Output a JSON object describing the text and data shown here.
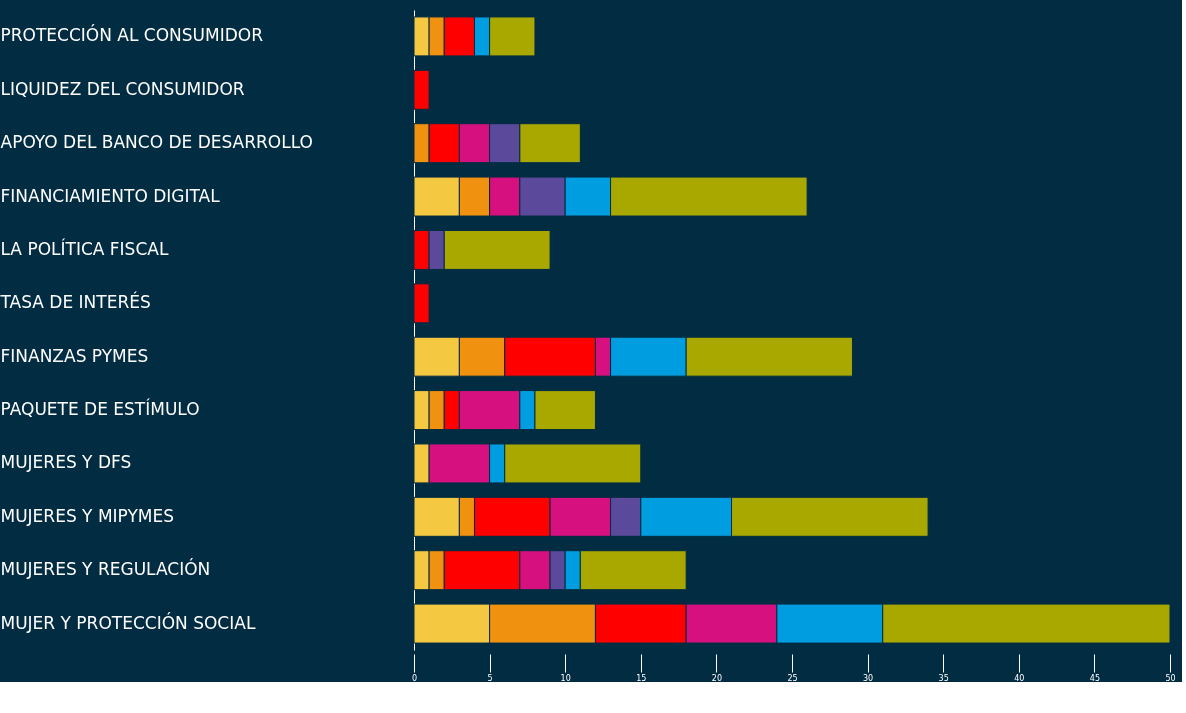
{
  "chart_data": {
    "type": "bar",
    "orientation": "horizontal",
    "stacked": true,
    "categories": [
      "PROTECCIÓN AL CONSUMIDOR",
      "LIQUIDEZ DEL CONSUMIDOR",
      "APOYO DEL BANCO DE DESARROLLO",
      "FINANCIAMIENTO DIGITAL",
      "LA POLÍTICA FISCAL",
      "TASA DE INTERÉS",
      "FINANZAS PYMES",
      "PAQUETE DE ESTÍMULO",
      "MUJERES Y DFS",
      "MUJERES Y MIPYMES",
      "MUJERES Y REGULACIÓN",
      "MUJER Y PROTECCIÓN SOCIAL"
    ],
    "series": [
      {
        "color": "#f5c842",
        "values": [
          1,
          null,
          null,
          3,
          null,
          null,
          3,
          1,
          1,
          3,
          1,
          5
        ]
      },
      {
        "color": "#f0920f",
        "values": [
          1,
          null,
          1,
          2,
          null,
          null,
          3,
          1,
          null,
          1,
          1,
          7
        ]
      },
      {
        "color": "#ff0000",
        "values": [
          2,
          1,
          2,
          null,
          1,
          1,
          6,
          1,
          null,
          5,
          5,
          6
        ]
      },
      {
        "color": "#d6107f",
        "values": [
          null,
          null,
          2,
          2,
          null,
          null,
          1,
          4,
          4,
          4,
          2,
          6
        ]
      },
      {
        "color": "#5b4a9b",
        "values": [
          null,
          null,
          2,
          3,
          1,
          null,
          null,
          null,
          null,
          2,
          1,
          null
        ]
      },
      {
        "color": "#009ee0",
        "values": [
          1,
          null,
          null,
          3,
          null,
          null,
          5,
          1,
          1,
          6,
          1,
          7
        ]
      },
      {
        "color": "#a8a800",
        "values": [
          3,
          null,
          4,
          13,
          7,
          null,
          11,
          4,
          9,
          13,
          7,
          19
        ]
      }
    ],
    "xlim": [
      0,
      50
    ],
    "xticks": [
      0,
      5,
      10,
      15,
      20,
      25,
      30,
      35,
      40,
      45,
      50
    ],
    "grid": false,
    "legend": false
  }
}
